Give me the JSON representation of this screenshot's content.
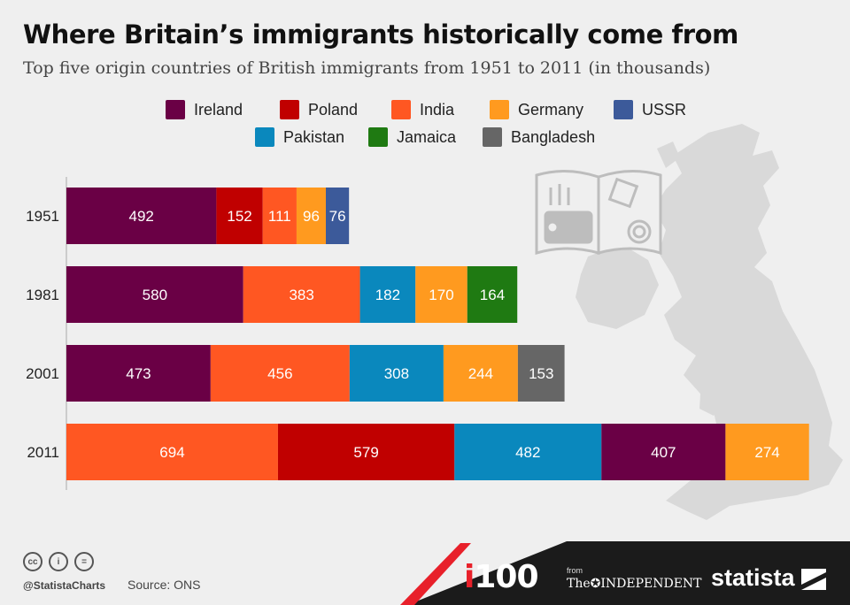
{
  "title": "Where Britain’s immigrants historically come from",
  "subtitle": "Top five origin countries of British immigrants from 1951 to 2011 (in thousands)",
  "colors": {
    "Ireland": "#6a0045",
    "Poland": "#c00000",
    "India": "#ff5722",
    "Germany": "#ff9a1f",
    "USSR": "#3c5a9a",
    "Pakistan": "#0a88bd",
    "Jamaica": "#1f7a12",
    "Bangladesh": "#666666",
    "background": "#efefef",
    "map": "#d8d8d8",
    "footer": "#1b1b1b",
    "accent": "#e8202a"
  },
  "legend": [
    [
      "Ireland",
      "Poland",
      "India",
      "Germany",
      "USSR"
    ],
    [
      "Pakistan",
      "Jamaica",
      "Bangladesh"
    ]
  ],
  "chart_data": {
    "type": "bar",
    "orientation": "horizontal",
    "stacked": true,
    "title": "Where Britain’s immigrants historically come from",
    "subtitle": "Top five origin countries of British immigrants from 1951 to 2011 (in thousands)",
    "unit": "thousands",
    "categories": [
      "1951",
      "1981",
      "2001",
      "2011"
    ],
    "rows": [
      {
        "year": "1951",
        "segments": [
          {
            "country": "Ireland",
            "value": 492
          },
          {
            "country": "Poland",
            "value": 152
          },
          {
            "country": "India",
            "value": 111
          },
          {
            "country": "Germany",
            "value": 96
          },
          {
            "country": "USSR",
            "value": 76
          }
        ]
      },
      {
        "year": "1981",
        "segments": [
          {
            "country": "Ireland",
            "value": 580
          },
          {
            "country": "India",
            "value": 383
          },
          {
            "country": "Pakistan",
            "value": 182
          },
          {
            "country": "Germany",
            "value": 170
          },
          {
            "country": "Jamaica",
            "value": 164
          }
        ]
      },
      {
        "year": "2001",
        "segments": [
          {
            "country": "Ireland",
            "value": 473
          },
          {
            "country": "India",
            "value": 456
          },
          {
            "country": "Pakistan",
            "value": 308
          },
          {
            "country": "Germany",
            "value": 244
          },
          {
            "country": "Bangladesh",
            "value": 153
          }
        ]
      },
      {
        "year": "2011",
        "segments": [
          {
            "country": "India",
            "value": 694
          },
          {
            "country": "Poland",
            "value": 579
          },
          {
            "country": "Pakistan",
            "value": 482
          },
          {
            "country": "Ireland",
            "value": 407
          },
          {
            "country": "Germany",
            "value": 274
          }
        ]
      }
    ],
    "xlim": [
      0,
      2431
    ],
    "xlabel": "",
    "ylabel": "",
    "grid": false,
    "legend_position": "top"
  },
  "footer": {
    "handle": "@StatistaCharts",
    "source": "Source: ONS",
    "cc_icons": [
      "cc",
      "i",
      "="
    ],
    "i100_i": "i",
    "i100_rest": "100",
    "from": "from",
    "independent": "The✪INDEPENDENT",
    "statista": "statista"
  }
}
